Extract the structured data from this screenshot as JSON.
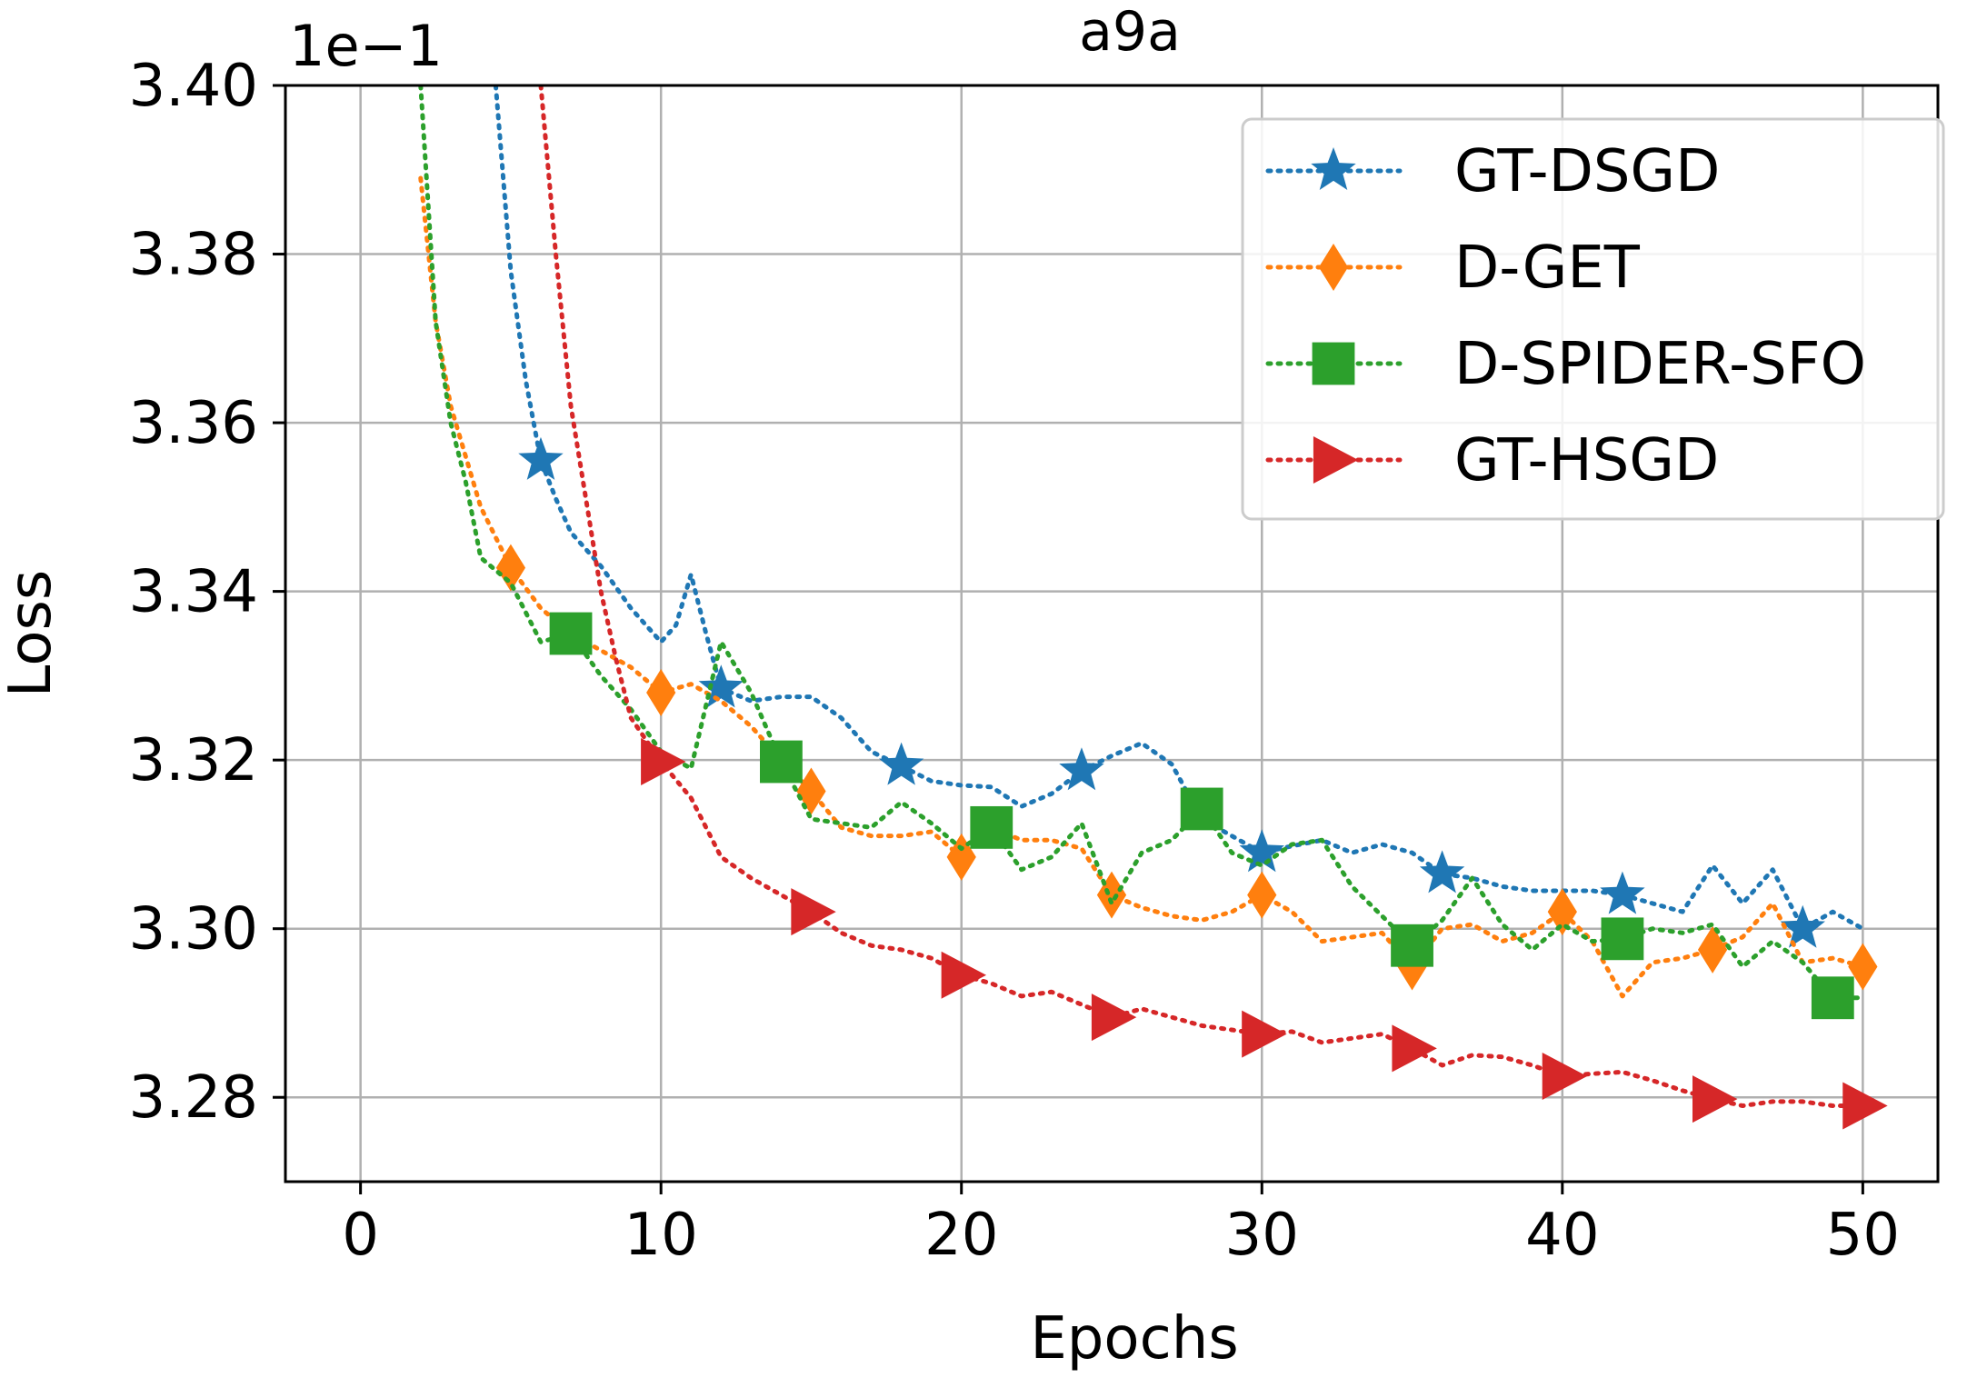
{
  "chart_data": {
    "type": "line",
    "title": "a9a",
    "xlabel": "Epochs",
    "ylabel": "Loss",
    "scale_label": "1e−1",
    "xlim": [
      -2.5,
      52.5
    ],
    "ylim": [
      3.27,
      3.4
    ],
    "xticks": [
      0,
      10,
      20,
      30,
      40,
      50
    ],
    "xtick_labels": [
      "0",
      "10",
      "20",
      "30",
      "40",
      "50"
    ],
    "yticks": [
      3.28,
      3.3,
      3.32,
      3.34,
      3.36,
      3.38,
      3.4
    ],
    "ytick_labels": [
      "3.28",
      "3.30",
      "3.32",
      "3.34",
      "3.36",
      "3.38",
      "3.40"
    ],
    "grid": true,
    "legend_position": "top-right",
    "series": [
      {
        "name": "GT-DSGD",
        "color": "#1f77b4",
        "marker": "star",
        "x": [
          4.5,
          5,
          5.5,
          6,
          6.5,
          7,
          8,
          9,
          10,
          10.5,
          11,
          11.5,
          12,
          13,
          14,
          15,
          16,
          17,
          18,
          19,
          20,
          21,
          22,
          23,
          24,
          25,
          26,
          27,
          28,
          29,
          30,
          31,
          32,
          33,
          34,
          35,
          36,
          37,
          38,
          39,
          40,
          41,
          42,
          43,
          44,
          45,
          46,
          47,
          48,
          49,
          50
        ],
        "values": [
          3.4,
          3.378,
          3.365,
          3.3555,
          3.351,
          3.347,
          3.343,
          3.338,
          3.334,
          3.336,
          3.342,
          3.335,
          3.3285,
          3.327,
          3.3275,
          3.3275,
          3.325,
          3.321,
          3.3193,
          3.3175,
          3.317,
          3.3168,
          3.3145,
          3.316,
          3.3187,
          3.3205,
          3.322,
          3.3195,
          3.313,
          3.311,
          3.309,
          3.3098,
          3.3105,
          3.309,
          3.31,
          3.309,
          3.3065,
          3.306,
          3.305,
          3.3045,
          3.3045,
          3.3045,
          3.304,
          3.303,
          3.302,
          3.3075,
          3.303,
          3.307,
          3.3,
          3.302,
          3.3
        ],
        "marker_x": [
          6,
          12,
          18,
          24,
          30,
          36,
          42,
          48
        ]
      },
      {
        "name": "D-GET",
        "color": "#ff7f0e",
        "marker": "diamond",
        "x": [
          2,
          2.5,
          3,
          3.5,
          4,
          5,
          6,
          7,
          8,
          9,
          10,
          11,
          12,
          13,
          14,
          15,
          16,
          17,
          18,
          19,
          20,
          21,
          22,
          23,
          24,
          25,
          26,
          27,
          28,
          29,
          30,
          31,
          32,
          33,
          34,
          35,
          36,
          37,
          38,
          39,
          40,
          41,
          42,
          43,
          44,
          45,
          46,
          47,
          48,
          49,
          50
        ],
        "values": [
          3.389,
          3.372,
          3.362,
          3.356,
          3.35,
          3.3428,
          3.338,
          3.335,
          3.333,
          3.331,
          3.328,
          3.329,
          3.327,
          3.324,
          3.32,
          3.3163,
          3.312,
          3.311,
          3.311,
          3.3115,
          3.3085,
          3.312,
          3.3105,
          3.3105,
          3.3095,
          3.304,
          3.3025,
          3.3015,
          3.301,
          3.302,
          3.304,
          3.302,
          3.2985,
          3.299,
          3.2995,
          3.2955,
          3.3,
          3.3005,
          3.2985,
          3.2995,
          3.302,
          3.2985,
          3.292,
          3.296,
          3.2965,
          3.2975,
          3.299,
          3.303,
          3.296,
          3.2965,
          3.2955
        ],
        "marker_x": [
          5,
          10,
          15,
          20,
          25,
          30,
          35,
          40,
          45,
          50
        ]
      },
      {
        "name": "D-SPIDER-SFO",
        "color": "#2ca02c",
        "marker": "square",
        "x": [
          2,
          2.5,
          3,
          3.5,
          4,
          5,
          6,
          7,
          8,
          9,
          10,
          11,
          12,
          13,
          14,
          15,
          16,
          17,
          18,
          19,
          20,
          21,
          22,
          23,
          24,
          25,
          26,
          27,
          28,
          29,
          30,
          31,
          32,
          33,
          34,
          35,
          36,
          37,
          38,
          39,
          40,
          41,
          42,
          43,
          44,
          45,
          46,
          47,
          48,
          49,
          50
        ],
        "values": [
          3.4,
          3.372,
          3.36,
          3.353,
          3.344,
          3.341,
          3.334,
          3.335,
          3.33,
          3.326,
          3.321,
          3.319,
          3.334,
          3.328,
          3.3198,
          3.313,
          3.3125,
          3.312,
          3.315,
          3.3125,
          3.3095,
          3.312,
          3.307,
          3.3085,
          3.3125,
          3.303,
          3.309,
          3.3105,
          3.3142,
          3.309,
          3.3075,
          3.31,
          3.3105,
          3.305,
          3.3015,
          3.298,
          3.301,
          3.306,
          3.3005,
          3.2975,
          3.3005,
          3.2985,
          3.2988,
          3.3,
          3.2995,
          3.3005,
          3.2955,
          3.2985,
          3.296,
          3.2918,
          3.2918
        ],
        "marker_x": [
          7,
          14,
          21,
          28,
          35,
          42,
          49
        ]
      },
      {
        "name": "GT-HSGD",
        "color": "#d62728",
        "marker": "triangle-right",
        "x": [
          6,
          6.5,
          7,
          7.5,
          8,
          8.5,
          9,
          10,
          11,
          12,
          13,
          14,
          15,
          16,
          17,
          18,
          19,
          20,
          21,
          22,
          23,
          24,
          25,
          26,
          27,
          28,
          29,
          30,
          31,
          32,
          33,
          34,
          35,
          36,
          37,
          38,
          39,
          40,
          41,
          42,
          43,
          44,
          45,
          46,
          47,
          48,
          49,
          50
        ],
        "values": [
          3.4,
          3.38,
          3.362,
          3.351,
          3.34,
          3.332,
          3.325,
          3.3198,
          3.3155,
          3.3085,
          3.306,
          3.304,
          3.302,
          3.2995,
          3.298,
          3.2975,
          3.2965,
          3.2945,
          3.2935,
          3.292,
          3.2925,
          3.291,
          3.2895,
          3.2905,
          3.2895,
          3.2885,
          3.288,
          3.2875,
          3.2878,
          3.2865,
          3.287,
          3.2875,
          3.2858,
          3.2838,
          3.285,
          3.2848,
          3.2838,
          3.2825,
          3.2828,
          3.283,
          3.282,
          3.2808,
          3.2798,
          3.279,
          3.2795,
          3.2795,
          3.279,
          3.279
        ],
        "marker_x": [
          10,
          15,
          20,
          25,
          30,
          35,
          40,
          45,
          50
        ]
      }
    ]
  }
}
